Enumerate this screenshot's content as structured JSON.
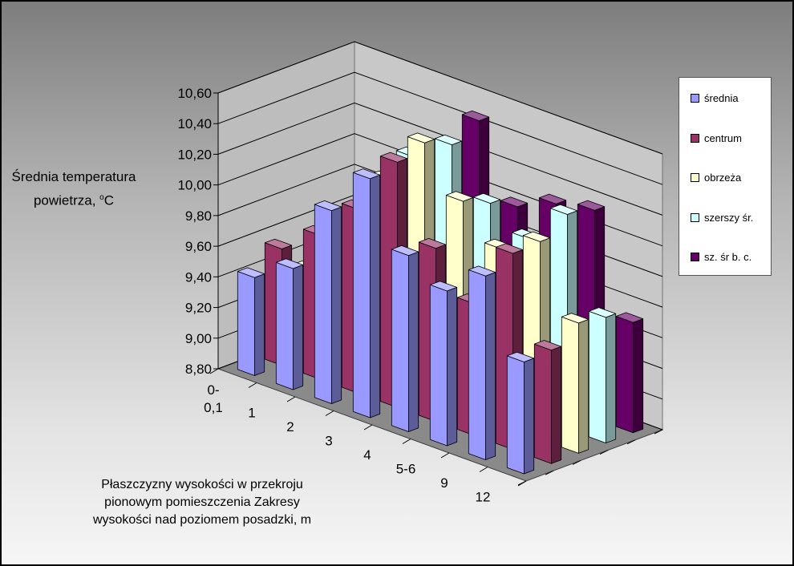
{
  "chart_data": {
    "type": "bar",
    "subtype": "3d-clustered-columns",
    "ylabel_line1": "Średnia temperatura",
    "ylabel_line2": "powietrza, ",
    "ylabel_unit_sup": "o",
    "ylabel_unit": "C",
    "xlabel_line1": "Płaszczyzny wysokości w przekroju",
    "xlabel_line2": "pionowym pomieszczenia Zakresy",
    "xlabel_line3": "wysokości nad poziomem posadzki, m",
    "categories": [
      "0-0,1",
      "1",
      "2",
      "3",
      "4",
      "5-6",
      "9",
      "12"
    ],
    "category_lines": [
      [
        "0-",
        "0,1"
      ],
      [
        "1"
      ],
      [
        "2"
      ],
      [
        "3"
      ],
      [
        "4"
      ],
      [
        "5-6"
      ],
      [
        "9"
      ],
      [
        "12"
      ]
    ],
    "yticks": [
      "8,80",
      "9,00",
      "9,20",
      "9,40",
      "9,60",
      "9,80",
      "10,00",
      "10,20",
      "10,40",
      "10,60"
    ],
    "ylim": [
      8.8,
      10.6
    ],
    "legend_position": "right",
    "grid": true,
    "series": [
      {
        "name": "średnia",
        "color": "#9999ff",
        "values": [
          9.44,
          9.59,
          10.06,
          10.36,
          9.95,
          9.81,
          10.0,
          9.53
        ]
      },
      {
        "name": "centrum",
        "color": "#993366",
        "values": [
          9.56,
          9.74,
          10.0,
          10.4,
          9.93,
          9.66,
          10.08,
          9.54
        ]
      },
      {
        "name": "obrzeża",
        "color": "#ffffcc",
        "values": [
          9.35,
          9.45,
          10.12,
          10.46,
          10.17,
          9.95,
          10.09,
          9.65
        ]
      },
      {
        "name": "szerszy śr.",
        "color": "#ccffff",
        "values": [
          9.24,
          9.53,
          10.21,
          10.38,
          10.09,
          9.95,
          10.2,
          9.62
        ]
      },
      {
        "name": "sz. śr b. c.",
        "color": "#660066",
        "values": [
          9.14,
          9.52,
          10.06,
          10.47,
          10.0,
          10.11,
          10.16,
          9.52
        ]
      }
    ]
  }
}
